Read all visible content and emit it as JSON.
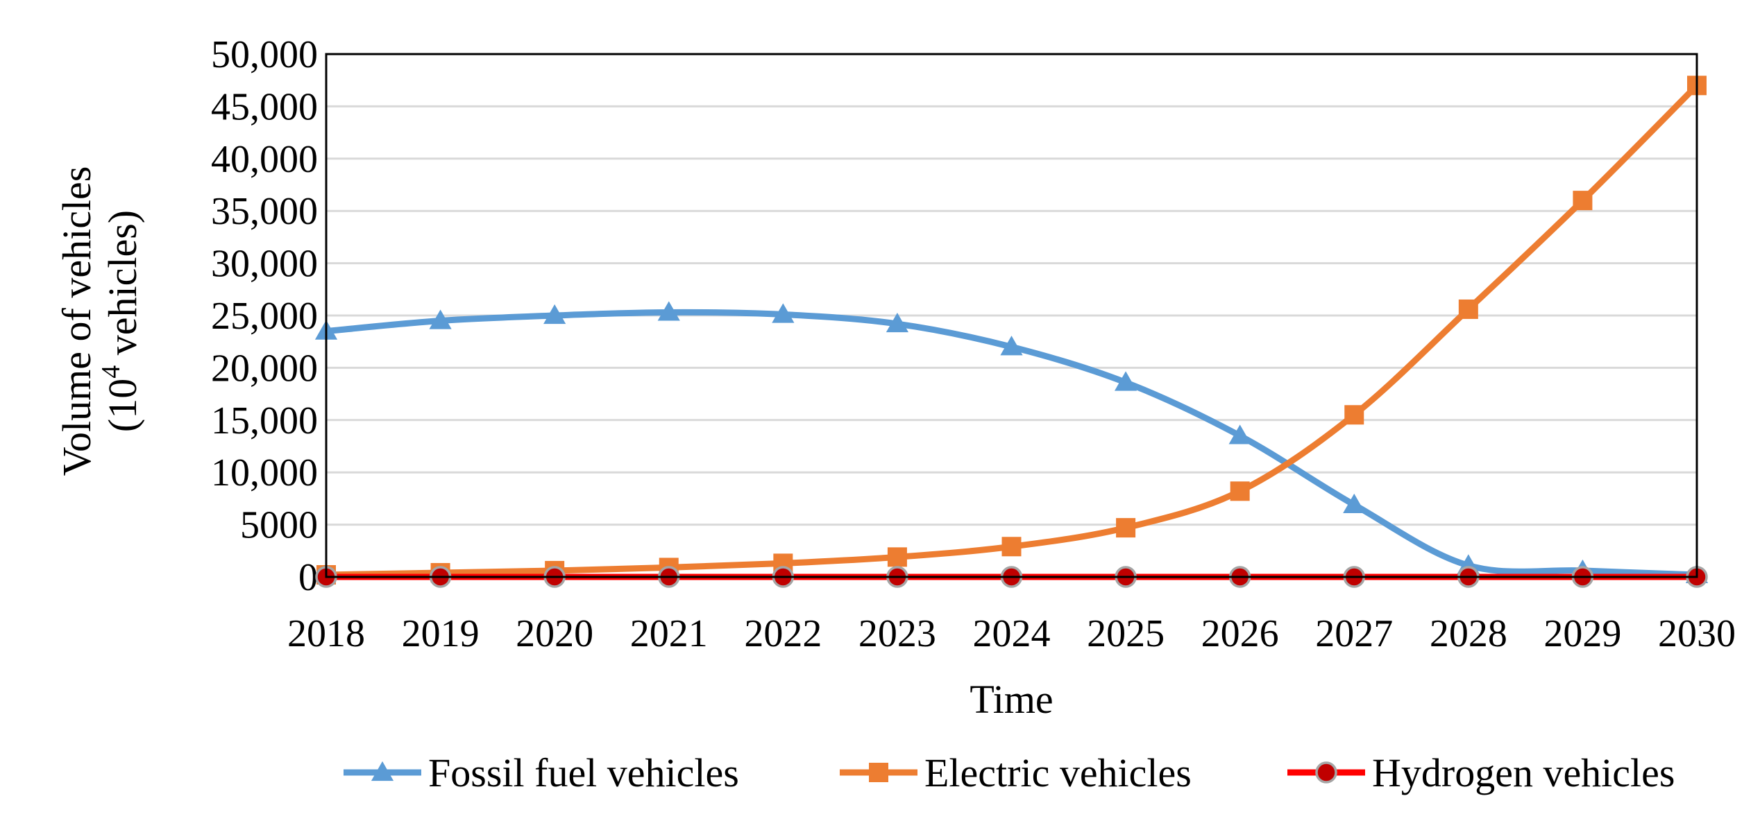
{
  "chart_data": {
    "type": "line",
    "title": "",
    "xlabel": "Time",
    "ylabel_line1": "Volume of vehicles",
    "ylabel_line2_prefix": "(10",
    "ylabel_line2_exp": "4",
    "ylabel_line2_suffix": " vehicles)",
    "ylim": [
      0,
      50000
    ],
    "grid": true,
    "legend_position": "bottom",
    "x": [
      "2018",
      "2019",
      "2020",
      "2021",
      "2022",
      "2023",
      "2024",
      "2025",
      "2026",
      "2027",
      "2028",
      "2029",
      "2030"
    ],
    "y_ticks": [
      {
        "value": 0,
        "label": "0"
      },
      {
        "value": 5000,
        "label": "5000"
      },
      {
        "value": 10000,
        "label": "10,000"
      },
      {
        "value": 15000,
        "label": "15,000"
      },
      {
        "value": 20000,
        "label": "20,000"
      },
      {
        "value": 25000,
        "label": "25,000"
      },
      {
        "value": 30000,
        "label": "30,000"
      },
      {
        "value": 35000,
        "label": "35,000"
      },
      {
        "value": 40000,
        "label": "40,000"
      },
      {
        "value": 45000,
        "label": "45,000"
      },
      {
        "value": 50000,
        "label": "50,000"
      }
    ],
    "series": [
      {
        "name": "Fossil fuel vehicles",
        "color": "#5B9BD5",
        "marker": "triangle",
        "values": [
          23500,
          24500,
          25000,
          25300,
          25100,
          24200,
          22000,
          18600,
          13500,
          6900,
          1100,
          600,
          200
        ]
      },
      {
        "name": "Electric vehicles",
        "color": "#ED7D31",
        "marker": "square",
        "values": [
          200,
          400,
          600,
          900,
          1300,
          1900,
          2900,
          4700,
          8200,
          15500,
          25600,
          36000,
          47000
        ]
      },
      {
        "name": "Hydrogen vehicles",
        "color": "#FF0000",
        "marker": "circle",
        "marker_fill": "#C00000",
        "marker_edge": "#A5A5A5",
        "values": [
          0,
          0,
          0,
          0,
          0,
          0,
          0,
          0,
          0,
          0,
          0,
          0,
          0
        ]
      }
    ]
  }
}
